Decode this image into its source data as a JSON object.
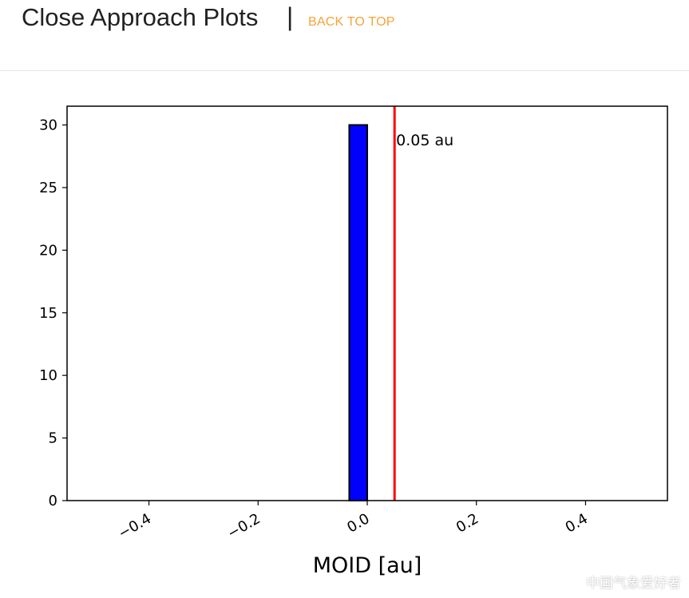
{
  "header": {
    "title": "Close Approach Plots",
    "separator": "|",
    "back_link": "BACK TO TOP"
  },
  "colors": {
    "title": "#222222",
    "link": "#f5a33b",
    "bar_fill": "#0000ff",
    "bar_edge": "#000000",
    "threshold_line": "#ff0000"
  },
  "chart_data": {
    "type": "bar",
    "xlabel": "MOID [au]",
    "ylabel": "",
    "xlim": [
      -0.55,
      0.55
    ],
    "ylim": [
      0,
      31.5
    ],
    "x_ticks": [
      -0.4,
      -0.2,
      0.0,
      0.2,
      0.4
    ],
    "x_tick_labels": [
      "−0.4",
      "−0.2",
      "0.0",
      "0.2",
      "0.4"
    ],
    "y_ticks": [
      0,
      5,
      10,
      15,
      20,
      25,
      30
    ],
    "y_tick_labels": [
      "0",
      "5",
      "10",
      "15",
      "20",
      "25",
      "30"
    ],
    "bars": [
      {
        "x_start": -0.033,
        "x_end": 0.0,
        "value": 30
      }
    ],
    "vline": {
      "x": 0.05,
      "label": "0.05 au"
    },
    "grid": false
  },
  "watermark": "中国气象爱好者"
}
